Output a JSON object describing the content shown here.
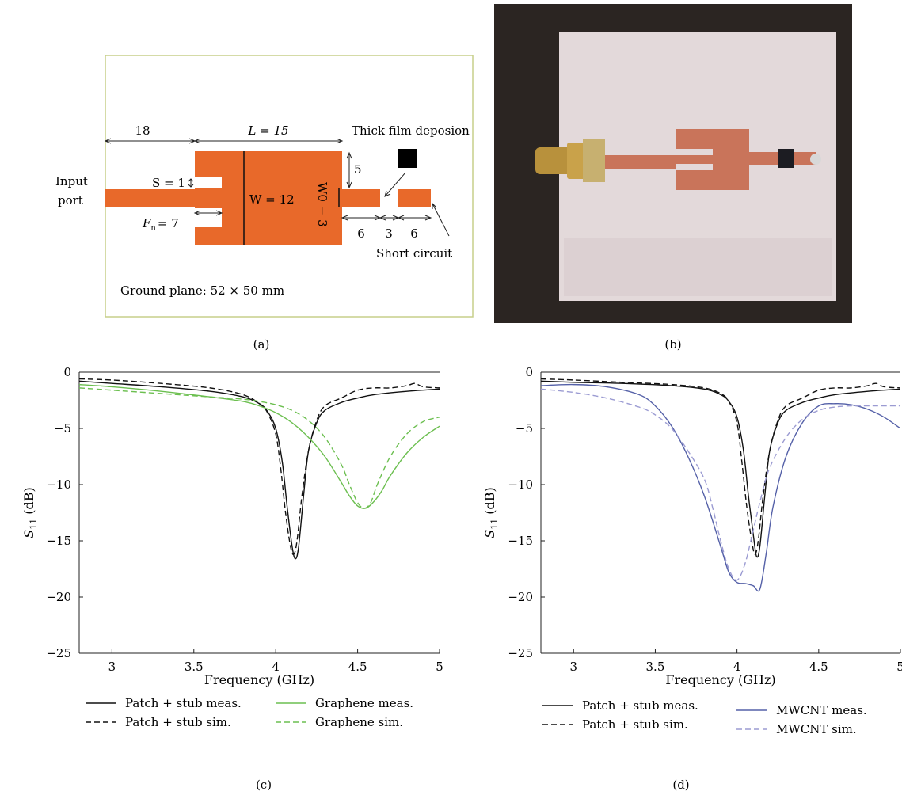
{
  "panel_labels": [
    "(a)",
    "(b)",
    "(c)",
    "(d)"
  ],
  "diagram": {
    "dim_18": "18",
    "dim_L": "L = 15",
    "thick_film": "Thick film deposion",
    "dim_5": "5",
    "input_port_line1": "Input",
    "input_port_line2": "port",
    "dim_S": "S = 1",
    "dim_W": "W = 12",
    "dim_W0": "W0 − 3",
    "dim_Fn": "F",
    "dim_Fn_sub": "n",
    "dim_Fn_val": "= 7",
    "dim_6a": "6",
    "dim_3": "3",
    "dim_6b": "6",
    "short_circuit": "Short circuit",
    "ground_plane": "Ground plane: 52 × 50 mm",
    "patch_color": "#e8692a",
    "film_color": "#000000",
    "frame_color": "#c7cf8a"
  },
  "photo": {
    "background": "#2b2522",
    "substrate": "#e6dcdd",
    "copper": "#c9745a"
  },
  "chart_data": [
    {
      "type": "line",
      "panel": "(c)",
      "xlabel": "Frequency (GHz)",
      "ylabel_main": "S",
      "ylabel_sub": "11",
      "ylabel_unit": " (dB)",
      "xlim": [
        2.8,
        5.0
      ],
      "ylim": [
        -25,
        0
      ],
      "xticks": [
        3,
        3.5,
        4,
        4.5,
        5
      ],
      "xtick_labels": [
        "3",
        "3.5",
        "4",
        "4.5",
        "5"
      ],
      "yticks": [
        0,
        -5,
        -10,
        -15,
        -20,
        -25
      ],
      "ytick_labels": [
        "0",
        "−5",
        "−10",
        "−15",
        "−20",
        "−25"
      ],
      "series": [
        {
          "name": "Patch + stub meas.",
          "color": "#111111",
          "dash": "solid",
          "x": [
            2.8,
            3.0,
            3.3,
            3.6,
            3.8,
            3.9,
            3.95,
            4.0,
            4.04,
            4.07,
            4.1,
            4.12,
            4.14,
            4.17,
            4.2,
            4.25,
            4.3,
            4.4,
            4.5,
            4.6,
            4.8,
            5.0
          ],
          "y": [
            -0.8,
            -1.0,
            -1.3,
            -1.7,
            -2.2,
            -2.8,
            -3.5,
            -5.0,
            -8.0,
            -12.0,
            -15.5,
            -16.6,
            -15.5,
            -11.0,
            -7.0,
            -4.5,
            -3.4,
            -2.7,
            -2.3,
            -2.0,
            -1.7,
            -1.5
          ]
        },
        {
          "name": "Patch + stub sim.",
          "color": "#111111",
          "dash": "dashed",
          "x": [
            2.8,
            3.0,
            3.3,
            3.6,
            3.8,
            3.9,
            3.95,
            4.0,
            4.03,
            4.06,
            4.09,
            4.11,
            4.13,
            4.16,
            4.2,
            4.25,
            4.3,
            4.4,
            4.5,
            4.6,
            4.7,
            4.8,
            4.85,
            4.9,
            5.0
          ],
          "y": [
            -0.6,
            -0.7,
            -1.0,
            -1.4,
            -2.0,
            -2.8,
            -3.6,
            -5.5,
            -8.5,
            -12.5,
            -15.5,
            -16.2,
            -15.0,
            -11.0,
            -7.0,
            -4.3,
            -3.0,
            -2.3,
            -1.6,
            -1.4,
            -1.4,
            -1.2,
            -1.0,
            -1.3,
            -1.4
          ]
        },
        {
          "name": "Graphene meas.",
          "color": "#6cbf50",
          "dash": "solid",
          "x": [
            2.8,
            3.0,
            3.3,
            3.6,
            3.8,
            3.9,
            4.0,
            4.1,
            4.2,
            4.3,
            4.4,
            4.45,
            4.5,
            4.55,
            4.6,
            4.65,
            4.7,
            4.8,
            4.9,
            5.0
          ],
          "y": [
            -1.1,
            -1.3,
            -1.7,
            -2.2,
            -2.6,
            -3.0,
            -3.6,
            -4.5,
            -5.8,
            -7.5,
            -9.8,
            -11.0,
            -11.9,
            -12.1,
            -11.5,
            -10.5,
            -9.2,
            -7.2,
            -5.8,
            -4.8
          ]
        },
        {
          "name": "Graphene sim.",
          "color": "#6cbf50",
          "dash": "dashed",
          "x": [
            2.8,
            3.0,
            3.3,
            3.6,
            3.8,
            3.9,
            4.0,
            4.1,
            4.2,
            4.3,
            4.4,
            4.45,
            4.5,
            4.54,
            4.58,
            4.62,
            4.7,
            4.8,
            4.9,
            5.0
          ],
          "y": [
            -1.4,
            -1.6,
            -1.9,
            -2.2,
            -2.4,
            -2.6,
            -2.9,
            -3.4,
            -4.3,
            -5.8,
            -8.2,
            -10.0,
            -11.6,
            -12.1,
            -11.6,
            -10.0,
            -7.5,
            -5.5,
            -4.4,
            -4.0
          ]
        }
      ]
    },
    {
      "type": "line",
      "panel": "(d)",
      "xlabel": "Frequency (GHz)",
      "ylabel_main": "S",
      "ylabel_sub": "11",
      "ylabel_unit": " (dB)",
      "xlim": [
        2.8,
        5.0
      ],
      "ylim": [
        -25,
        0
      ],
      "xticks": [
        3,
        3.5,
        4,
        4.5,
        5
      ],
      "xtick_labels": [
        "3",
        "3.5",
        "4",
        "4.5",
        "5"
      ],
      "yticks": [
        0,
        -5,
        -10,
        -15,
        -20,
        -25
      ],
      "ytick_labels": [
        "0",
        "−5",
        "−10",
        "−15",
        "−20",
        "−25"
      ],
      "series": [
        {
          "name": "Patch + stub meas.",
          "color": "#111111",
          "dash": "solid",
          "x": [
            2.8,
            3.0,
            3.3,
            3.6,
            3.8,
            3.9,
            3.95,
            4.0,
            4.04,
            4.07,
            4.1,
            4.12,
            4.14,
            4.17,
            4.2,
            4.25,
            4.3,
            4.4,
            4.5,
            4.6,
            4.8,
            5.0
          ],
          "y": [
            -0.8,
            -0.9,
            -1.0,
            -1.2,
            -1.5,
            -2.0,
            -2.6,
            -4.0,
            -7.0,
            -11.0,
            -14.5,
            -16.4,
            -15.5,
            -11.0,
            -7.0,
            -4.5,
            -3.4,
            -2.7,
            -2.3,
            -2.0,
            -1.7,
            -1.5
          ]
        },
        {
          "name": "Patch + stub sim.",
          "color": "#111111",
          "dash": "dashed",
          "x": [
            2.8,
            3.0,
            3.3,
            3.6,
            3.8,
            3.9,
            3.95,
            4.0,
            4.03,
            4.06,
            4.09,
            4.11,
            4.13,
            4.16,
            4.2,
            4.25,
            4.3,
            4.4,
            4.5,
            4.6,
            4.7,
            4.8,
            4.85,
            4.9,
            5.0
          ],
          "y": [
            -0.6,
            -0.7,
            -0.9,
            -1.1,
            -1.4,
            -1.9,
            -2.6,
            -4.5,
            -8.0,
            -12.0,
            -15.0,
            -16.2,
            -15.0,
            -11.0,
            -7.0,
            -4.3,
            -3.0,
            -2.3,
            -1.6,
            -1.4,
            -1.4,
            -1.2,
            -1.0,
            -1.3,
            -1.4
          ]
        },
        {
          "name": "MWCNT meas.",
          "color": "#5561a8",
          "dash": "solid",
          "x": [
            2.8,
            3.0,
            3.2,
            3.4,
            3.5,
            3.6,
            3.7,
            3.8,
            3.9,
            3.95,
            4.0,
            4.05,
            4.1,
            4.14,
            4.18,
            4.22,
            4.3,
            4.4,
            4.5,
            4.6,
            4.7,
            4.8,
            4.9,
            5.0
          ],
          "y": [
            -1.2,
            -1.1,
            -1.3,
            -2.0,
            -3.0,
            -4.8,
            -7.5,
            -11.0,
            -15.5,
            -17.8,
            -18.7,
            -18.8,
            -19.0,
            -19.3,
            -16.0,
            -12.0,
            -7.5,
            -4.5,
            -3.0,
            -2.8,
            -2.9,
            -3.3,
            -4.0,
            -5.0
          ]
        },
        {
          "name": "MWCNT sim.",
          "color": "#9b9bd2",
          "dash": "dashed",
          "x": [
            2.8,
            3.0,
            3.2,
            3.4,
            3.5,
            3.6,
            3.7,
            3.8,
            3.85,
            3.9,
            3.95,
            4.0,
            4.05,
            4.1,
            4.15,
            4.2,
            4.3,
            4.4,
            4.5,
            4.6,
            4.7,
            4.8,
            4.9,
            5.0
          ],
          "y": [
            -1.5,
            -1.8,
            -2.3,
            -3.1,
            -3.8,
            -5.0,
            -7.0,
            -9.5,
            -12.0,
            -15.0,
            -17.5,
            -18.5,
            -17.0,
            -14.0,
            -11.0,
            -8.5,
            -5.8,
            -4.2,
            -3.4,
            -3.1,
            -3.0,
            -3.0,
            -3.0,
            -3.0
          ]
        }
      ]
    }
  ]
}
